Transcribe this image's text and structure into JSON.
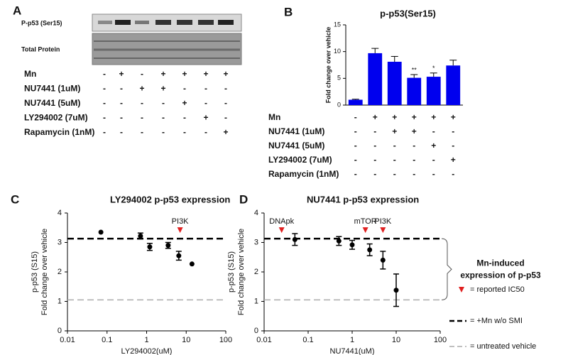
{
  "panel_a": {
    "panel": "A",
    "blot_labels": [
      "P-p53 (Ser15)",
      "Total Protein"
    ],
    "treatments": [
      {
        "label": "Mn",
        "signs": [
          "-",
          "+",
          "-",
          "+",
          "+",
          "+",
          "+"
        ]
      },
      {
        "label": "NU7441 (1uM)",
        "signs": [
          "-",
          "-",
          "+",
          "+",
          "-",
          "-",
          "-"
        ]
      },
      {
        "label": "NU7441 (5uM)",
        "signs": [
          "-",
          "-",
          "-",
          "-",
          "+",
          "-",
          "-"
        ]
      },
      {
        "label": "LY294002 (7uM)",
        "signs": [
          "-",
          "-",
          "-",
          "-",
          "-",
          "+",
          "-"
        ]
      },
      {
        "label": "Rapamycin (1nM)",
        "signs": [
          "-",
          "-",
          "-",
          "-",
          "-",
          "-",
          "+"
        ]
      }
    ]
  },
  "chart_data": [
    {
      "type": "bar",
      "panel": "B",
      "title": "p-p53(Ser15)",
      "ylabel": "Fold change over vehicle",
      "categories": [
        null,
        null,
        null,
        null,
        null,
        null
      ],
      "values": [
        1,
        9.7,
        8.1,
        5.1,
        5.3,
        7.4
      ],
      "errors": [
        0.1,
        0.9,
        1.0,
        0.6,
        0.7,
        1.0
      ],
      "significance": [
        null,
        null,
        null,
        "**",
        "*",
        null
      ],
      "color": "#0000ee",
      "ylim": [
        0,
        15
      ],
      "yticks": [
        0,
        5,
        10,
        15
      ],
      "treatments": [
        {
          "label": "Mn",
          "signs": [
            "-",
            "+",
            "+",
            "+",
            "+",
            "+"
          ]
        },
        {
          "label": "NU7441 (1uM)",
          "signs": [
            "-",
            "-",
            "+",
            "+",
            "-",
            "-"
          ]
        },
        {
          "label": "NU7441 (5uM)",
          "signs": [
            "-",
            "-",
            "-",
            "-",
            "+",
            "-"
          ]
        },
        {
          "label": "LY294002 (7uM)",
          "signs": [
            "-",
            "-",
            "-",
            "-",
            "-",
            "+"
          ]
        },
        {
          "label": "Rapamycin (1nM)",
          "signs": [
            "-",
            "-",
            "-",
            "-",
            "-",
            "-"
          ]
        }
      ]
    },
    {
      "type": "scatter",
      "panel": "C",
      "title": "LY294002 p-p53 expression",
      "xlabel": "LY294002(uM)",
      "ylabel": [
        "p-p53 (S15)",
        "Fold change over vehicle"
      ],
      "x": [
        0.07,
        0.7,
        1.2,
        3.5,
        6.5,
        14
      ],
      "values": [
        3.35,
        3.22,
        2.85,
        2.9,
        2.55,
        2.27
      ],
      "errors": [
        null,
        0.1,
        0.12,
        0.1,
        0.15,
        null
      ],
      "color": "#000000",
      "xscale": "log",
      "xlim": [
        0.01,
        100
      ],
      "xticks": [
        0.01,
        0.1,
        1,
        10,
        100
      ],
      "ylim": [
        0,
        4
      ],
      "yticks": [
        0,
        1,
        2,
        3,
        4
      ],
      "reference_lines": [
        {
          "value": 3.13,
          "color": "#000000"
        },
        {
          "value": 1.05,
          "color": "#aaaaaa"
        }
      ],
      "annotations": [
        {
          "text": "PI3K",
          "x": 7
        }
      ]
    },
    {
      "type": "scatter",
      "panel": "D",
      "title": "NU7441 p-p53 expression",
      "xlabel": "NU7441(uM)",
      "ylabel": [
        "p-p53 (S15)",
        "Fold change over vehicle"
      ],
      "x": [
        0.05,
        0.5,
        1,
        2.5,
        5,
        10
      ],
      "values": [
        3.1,
        3.05,
        2.92,
        2.75,
        2.4,
        1.38
      ],
      "errors": [
        0.2,
        0.15,
        0.15,
        0.2,
        0.3,
        0.55
      ],
      "color": "#000000",
      "xscale": "log",
      "xlim": [
        0.01,
        100
      ],
      "xticks": [
        0.01,
        0.1,
        1,
        10,
        100
      ],
      "ylim": [
        0,
        4
      ],
      "yticks": [
        0,
        1,
        2,
        3,
        4
      ],
      "reference_lines": [
        {
          "value": 3.13,
          "color": "#000000",
          "name": "= +Mn w/o SMI"
        },
        {
          "value": 1.05,
          "color": "#aaaaaa",
          "name": "= untreated vehicle"
        }
      ],
      "annotations": [
        {
          "text": "DNApk",
          "x": 0.025
        },
        {
          "text": "mTOR",
          "x": 2
        },
        {
          "text": "PI3K",
          "x": 5
        }
      ],
      "bracket_label": [
        "Mn-induced",
        "expression of p-p53"
      ],
      "ic50_legend": "= reported IC50"
    }
  ]
}
